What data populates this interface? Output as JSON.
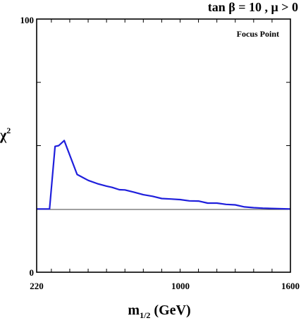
{
  "header": {
    "tan_label": "tan",
    "beta": "β",
    "eq_ten": " = 10 ,  ",
    "mu": "μ",
    "mu_cond": " > 0"
  },
  "chart_data": {
    "type": "line",
    "title": "",
    "annotation": "Focus Point",
    "xlabel_main": "m",
    "xlabel_sub": "1/2",
    "xlabel_unit": " (GeV)",
    "ylabel_main": "χ",
    "ylabel_sup": "2",
    "xlim": [
      220,
      1600
    ],
    "ylim": [
      0,
      100
    ],
    "x_ticks_labeled": [
      {
        "value": 220,
        "label": "220"
      },
      {
        "value": 1000,
        "label": "1000"
      },
      {
        "value": 1600,
        "label": "1600"
      }
    ],
    "y_ticks_labeled": [
      {
        "value": 0,
        "label": "0"
      },
      {
        "value": 100,
        "label": "100"
      }
    ],
    "reference_line_y": 24.8,
    "series": [
      {
        "color": "#1f1fdc",
        "x": [
          220,
          290,
          320,
          340,
          370,
          440,
          500,
          550,
          600,
          630,
          670,
          700,
          750,
          800,
          850,
          900,
          950,
          1000,
          1050,
          1100,
          1150,
          1200,
          1250,
          1300,
          1350,
          1400,
          1450,
          1600
        ],
        "y": [
          25,
          25,
          49.7,
          50,
          52,
          38.6,
          36.3,
          35,
          34,
          33.5,
          32.6,
          32.5,
          31.6,
          30.6,
          30,
          29.1,
          28.9,
          28.7,
          28.2,
          28.1,
          27.3,
          27.3,
          26.8,
          26.6,
          25.8,
          25.5,
          25.3,
          25
        ]
      }
    ]
  }
}
